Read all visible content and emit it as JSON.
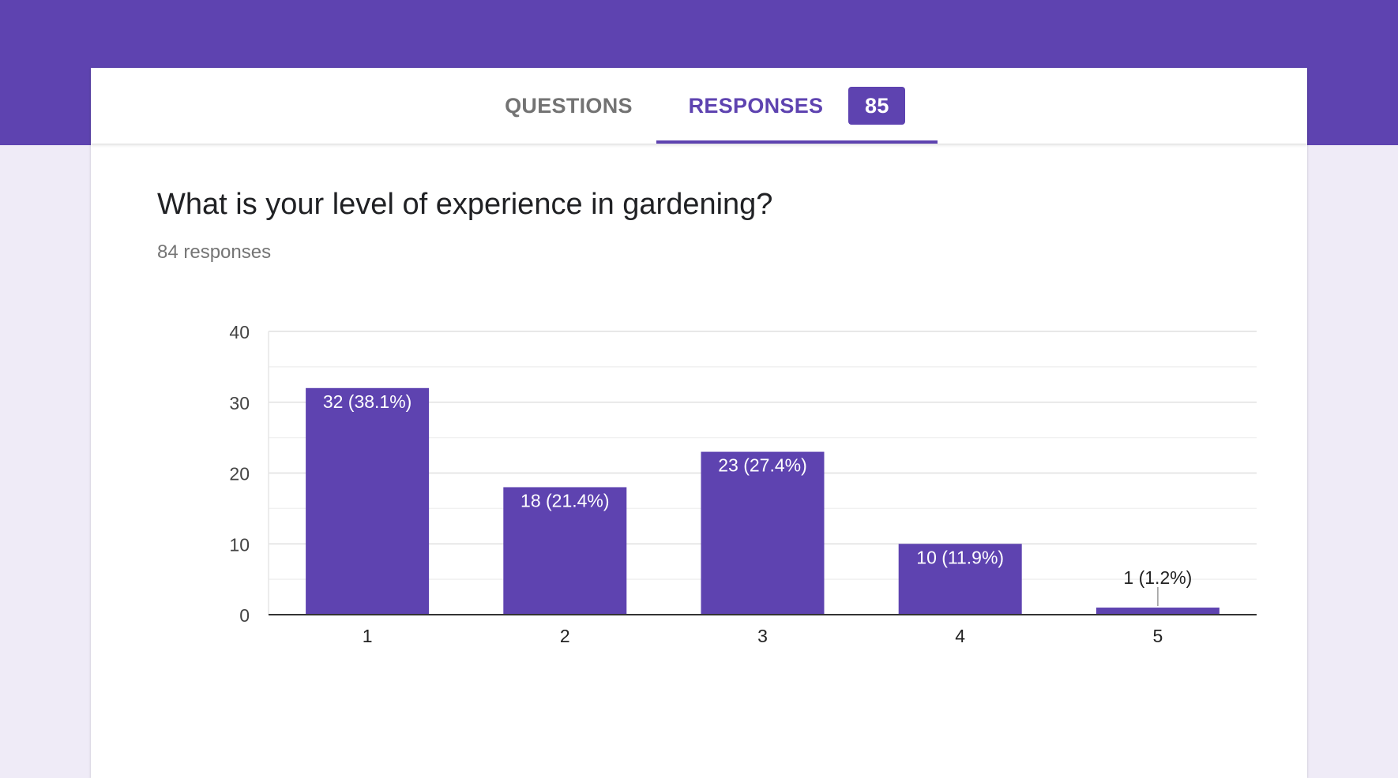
{
  "tabs": {
    "questions_label": "QUESTIONS",
    "responses_label": "RESPONSES",
    "responses_count": "85"
  },
  "question": {
    "title": "What is your level of experience in gardening?",
    "response_count": "84 responses"
  },
  "colors": {
    "accent": "#5e43b0",
    "background": "#efebf7"
  },
  "chart_data": {
    "type": "bar",
    "categories": [
      "1",
      "2",
      "3",
      "4",
      "5"
    ],
    "values": [
      32,
      18,
      23,
      10,
      1
    ],
    "labels": [
      "32 (38.1%)",
      "18 (21.4%)",
      "23 (27.4%)",
      "10 (11.9%)",
      "1 (1.2%)"
    ],
    "ylim": [
      0,
      40
    ],
    "yticks": [
      0,
      10,
      20,
      30,
      40
    ],
    "grid": true,
    "legend": "none"
  }
}
